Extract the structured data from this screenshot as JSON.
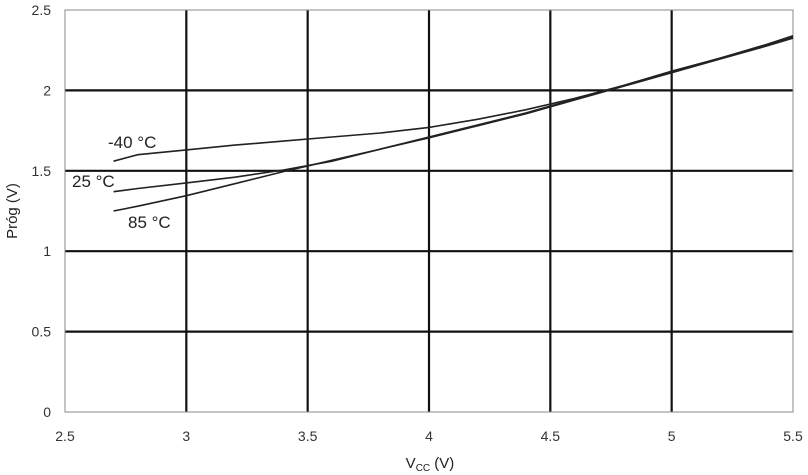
{
  "chart_data": {
    "type": "line",
    "xlabel_main": "V",
    "xlabel_sub": "CC",
    "xlabel_unit": " (V)",
    "ylabel": "Próg (V)",
    "xlim": [
      2.5,
      5.5
    ],
    "ylim": [
      0,
      2.5
    ],
    "x_ticks": [
      "2.5",
      "3",
      "3.5",
      "4",
      "4.5",
      "5",
      "5.5"
    ],
    "y_ticks": [
      "0",
      "0.5",
      "1",
      "1.5",
      "2",
      "2.5"
    ],
    "grid": true,
    "series": [
      {
        "name": "-40 °C",
        "x": [
          2.7,
          2.8,
          3.0,
          3.2,
          3.4,
          3.6,
          3.8,
          4.0,
          4.2,
          4.4,
          4.6,
          4.8,
          5.0,
          5.2,
          5.4,
          5.5
        ],
        "y": [
          1.56,
          1.6,
          1.63,
          1.66,
          1.685,
          1.71,
          1.735,
          1.77,
          1.82,
          1.88,
          1.95,
          2.03,
          2.12,
          2.2,
          2.29,
          2.34
        ]
      },
      {
        "name": "25 °C",
        "x": [
          2.7,
          2.8,
          3.0,
          3.2,
          3.4,
          3.6,
          3.8,
          4.0,
          4.2,
          4.4,
          4.6,
          4.8,
          5.0,
          5.2,
          5.4,
          5.5
        ],
        "y": [
          1.37,
          1.39,
          1.425,
          1.46,
          1.505,
          1.56,
          1.635,
          1.71,
          1.785,
          1.86,
          1.945,
          2.03,
          2.115,
          2.2,
          2.285,
          2.33
        ]
      },
      {
        "name": "85 °C",
        "x": [
          2.7,
          2.8,
          3.0,
          3.2,
          3.4,
          3.6,
          3.8,
          4.0,
          4.2,
          4.4,
          4.6,
          4.8,
          5.0,
          5.2,
          5.4,
          5.5
        ],
        "y": [
          1.25,
          1.28,
          1.345,
          1.42,
          1.495,
          1.565,
          1.635,
          1.705,
          1.78,
          1.855,
          1.94,
          2.025,
          2.11,
          2.195,
          2.28,
          2.325
        ]
      }
    ]
  }
}
